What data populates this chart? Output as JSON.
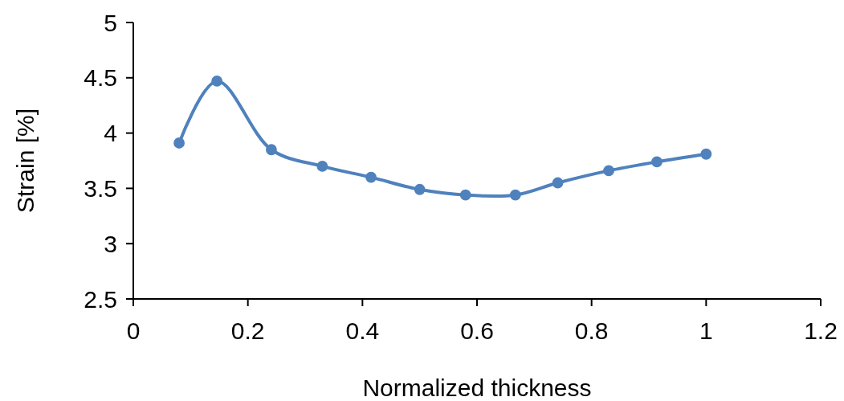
{
  "chart_data": {
    "type": "line",
    "xlabel": "Normalized thickness",
    "ylabel": "Strain [%]",
    "x": [
      0.08,
      0.146,
      0.241,
      0.33,
      0.415,
      0.5,
      0.58,
      0.667,
      0.741,
      0.83,
      0.914,
      1.0
    ],
    "series": [
      {
        "color": "#4f81bd",
        "values": [
          3.91,
          4.47,
          3.85,
          3.7,
          3.6,
          3.49,
          3.44,
          3.44,
          3.55,
          3.66,
          3.74,
          3.81
        ]
      }
    ],
    "xlim": [
      0,
      1.2
    ],
    "xticks": [
      0,
      0.2,
      0.4,
      0.6,
      0.8,
      1,
      1.2
    ],
    "ylim": [
      2.5,
      5
    ],
    "yticks": [
      2.5,
      3,
      3.5,
      4,
      4.5,
      5
    ],
    "grid": false,
    "marker": "circle",
    "line_style": "solid"
  }
}
